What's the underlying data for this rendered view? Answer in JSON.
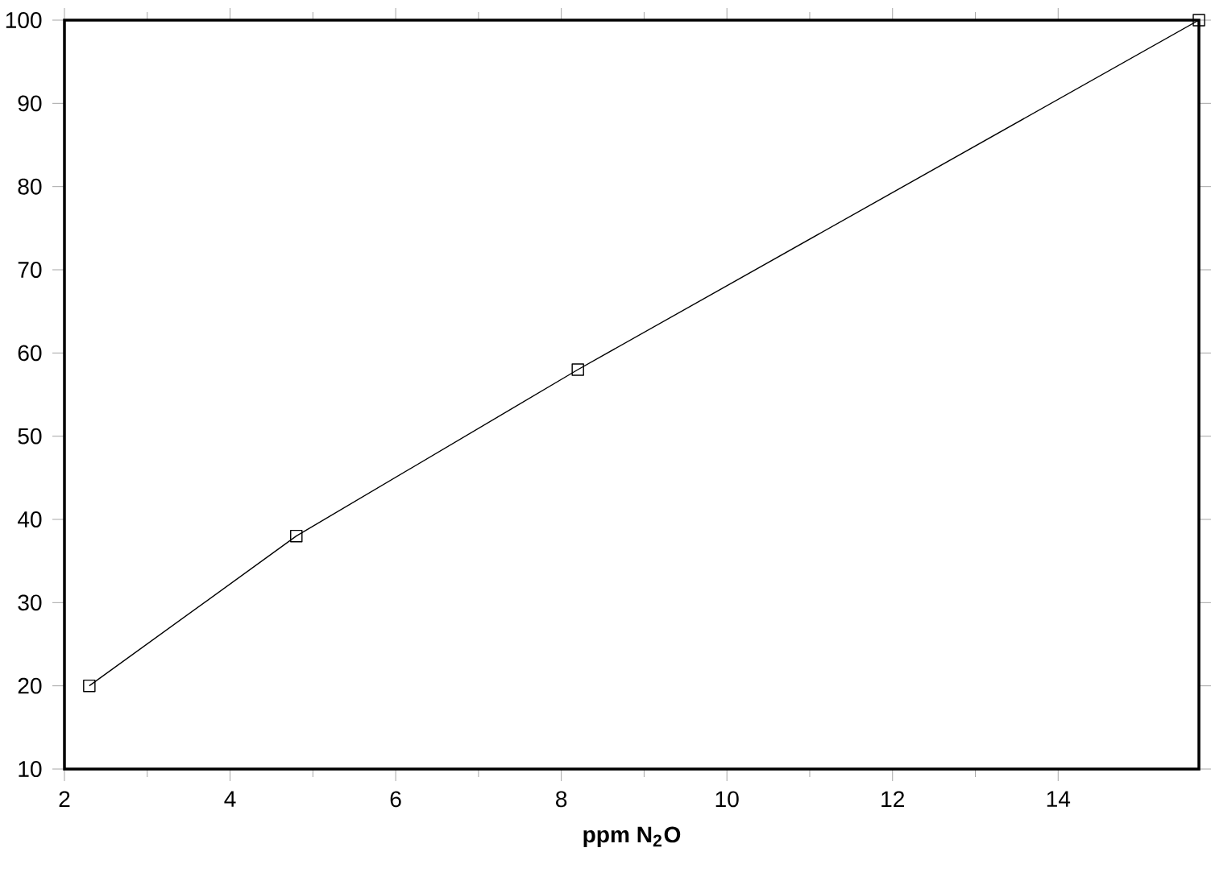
{
  "chart_data": {
    "type": "line",
    "xlabel": "ppm N$_{2}$O",
    "x": [
      2.3,
      4.8,
      8.2,
      15.7
    ],
    "values": [
      20,
      38,
      58,
      100
    ],
    "color": "#000000",
    "marker": "square",
    "line_style": "solid",
    "xlim": [
      2,
      15.7
    ],
    "ylim": [
      10,
      100
    ],
    "xticks": [
      2,
      4,
      6,
      8,
      10,
      12,
      14
    ],
    "yticks": [
      10,
      20,
      30,
      40,
      50,
      60,
      70,
      80,
      90,
      100
    ]
  }
}
